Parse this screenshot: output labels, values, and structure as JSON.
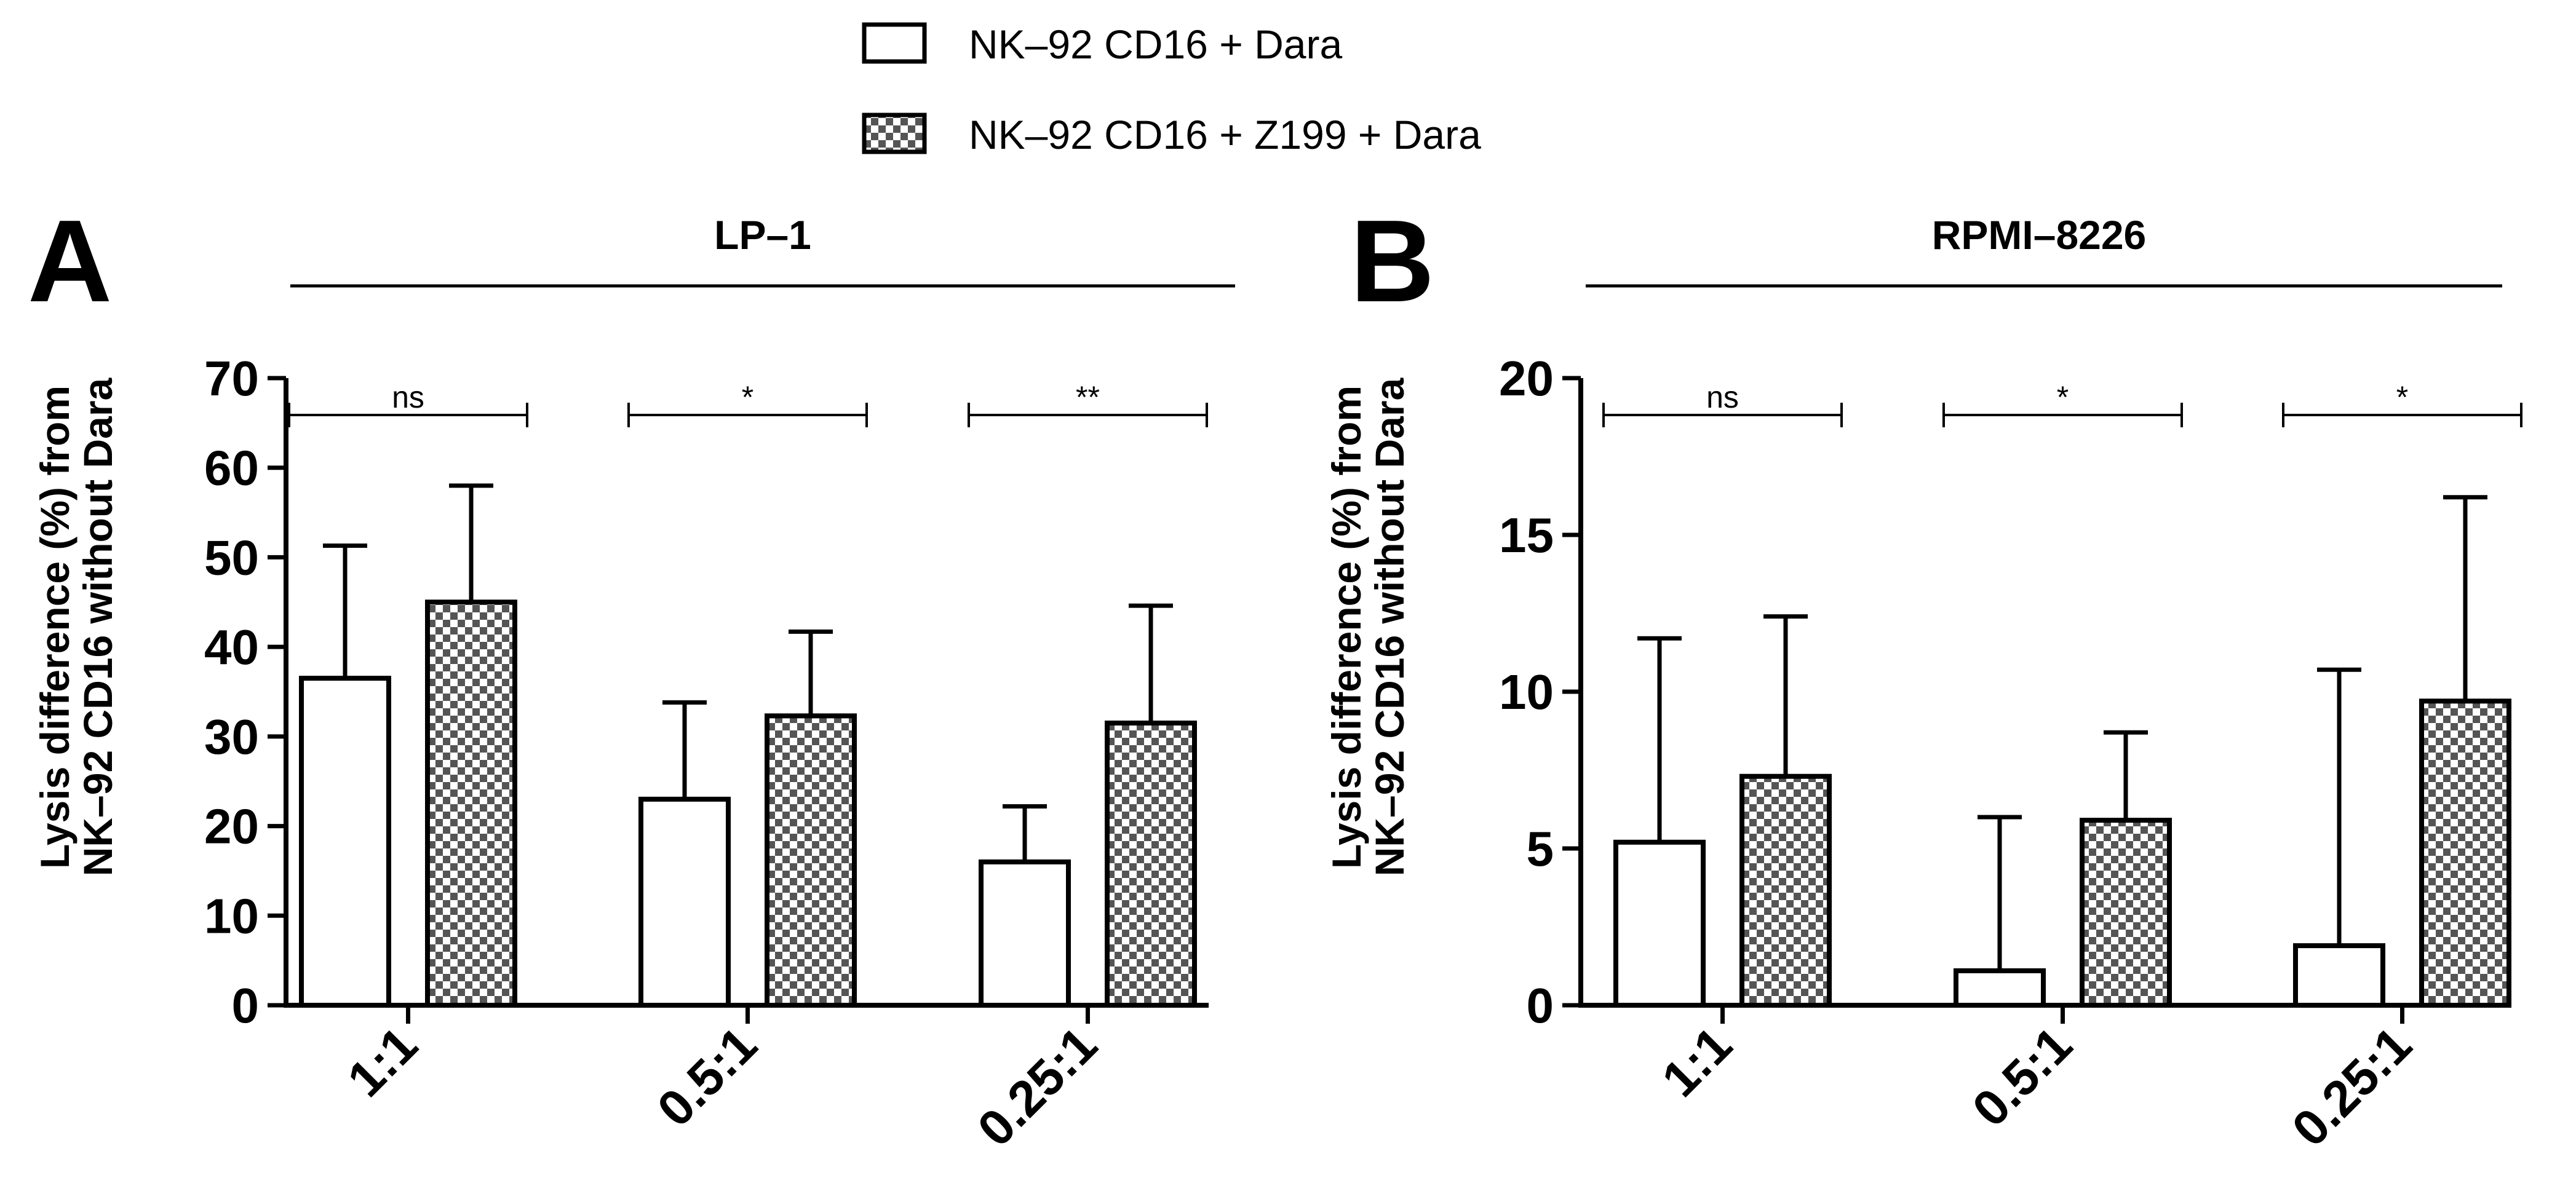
{
  "legend": {
    "items": [
      {
        "label": "NK–92 CD16 + Dara",
        "pattern": "open"
      },
      {
        "label": "NK–92 CD16 + Z199 + Dara",
        "pattern": "checker"
      }
    ]
  },
  "chart_data": [
    {
      "type": "bar",
      "panel_letter": "A",
      "title": "LP–1",
      "ylabel": "Lysis difference (%) from NK–92 CD16 without Dara",
      "ylabel_lines": [
        "Lysis difference (%) from",
        "NK–92 CD16 without Dara"
      ],
      "xlabel": "",
      "categories": [
        "1:1",
        "0.5:1",
        "0.25:1"
      ],
      "ylim": [
        0,
        70
      ],
      "yticks": [
        0,
        10,
        20,
        30,
        40,
        50,
        60,
        70
      ],
      "series": [
        {
          "name": "NK–92 CD16 + Dara",
          "pattern": "open",
          "values": [
            36.5,
            23,
            16
          ],
          "errors": [
            14.8,
            10.8,
            6.2
          ]
        },
        {
          "name": "NK–92 CD16 + Z199 + Dara",
          "pattern": "checker",
          "values": [
            45,
            32.3,
            31.5
          ],
          "errors": [
            13,
            9.4,
            13.1
          ]
        }
      ],
      "significance": [
        "ns",
        "*",
        "**"
      ]
    },
    {
      "type": "bar",
      "panel_letter": "B",
      "title": "RPMI–8226",
      "ylabel": "Lysis difference (%) from NK–92 CD16 without Dara",
      "ylabel_lines": [
        "Lysis difference (%) from",
        "NK–92 CD16 without Dara"
      ],
      "xlabel": "",
      "categories": [
        "1:1",
        "0.5:1",
        "0.25:1"
      ],
      "ylim": [
        0,
        20
      ],
      "yticks": [
        0,
        5,
        10,
        15,
        20
      ],
      "series": [
        {
          "name": "NK–92 CD16 + Dara",
          "pattern": "open",
          "values": [
            5.2,
            1.1,
            1.9
          ],
          "errors": [
            6.5,
            4.9,
            8.8
          ]
        },
        {
          "name": "NK–92 CD16 + Z199 + Dara",
          "pattern": "checker",
          "values": [
            7.3,
            5.9,
            9.7
          ],
          "errors": [
            5.1,
            2.8,
            6.5
          ]
        }
      ],
      "significance": [
        "ns",
        "*",
        "*"
      ]
    }
  ],
  "colors": {
    "ink": "#000000",
    "background": "#ffffff",
    "checker_dark": "#555555"
  }
}
